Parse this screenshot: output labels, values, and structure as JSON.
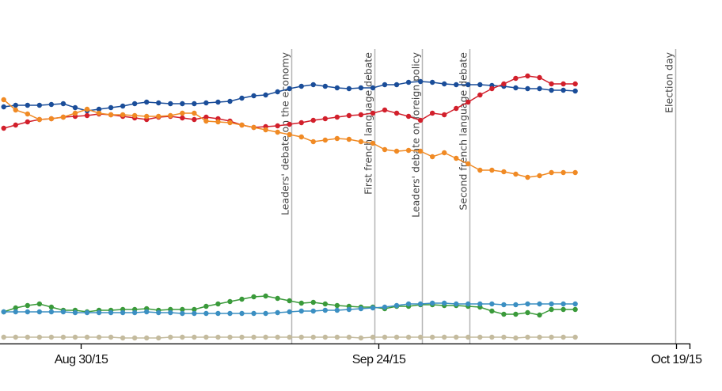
{
  "chart_data": {
    "type": "line",
    "title": "",
    "xlabel": "",
    "ylabel": "",
    "x_axis": {
      "type": "date",
      "range": [
        "2015-08-23",
        "2015-10-20"
      ],
      "ticks": [
        {
          "date": "2015-08-30",
          "label": "Aug 30/15"
        },
        {
          "date": "2015-09-24",
          "label": "Sep 24/15"
        },
        {
          "date": "2015-10-19",
          "label": "Oct 19/15"
        }
      ]
    },
    "y_axis": {
      "visible": false,
      "ylim": [
        0,
        38
      ]
    },
    "grid": false,
    "legend": "none",
    "events": [
      {
        "date": "2015-09-17",
        "label": "Leaders' debate on the economy"
      },
      {
        "date": "2015-09-24",
        "label": "First french language debate"
      },
      {
        "date": "2015-09-28",
        "label": "Leaders' debate on foreign policy"
      },
      {
        "date": "2015-10-02",
        "label": "Second french language debate"
      },
      {
        "date": "2015-10-19",
        "label": "Election day"
      }
    ],
    "x": [
      "2015-08-23",
      "2015-08-24",
      "2015-08-25",
      "2015-08-26",
      "2015-08-27",
      "2015-08-28",
      "2015-08-29",
      "2015-08-30",
      "2015-08-31",
      "2015-09-01",
      "2015-09-02",
      "2015-09-03",
      "2015-09-04",
      "2015-09-05",
      "2015-09-06",
      "2015-09-07",
      "2015-09-08",
      "2015-09-09",
      "2015-09-10",
      "2015-09-11",
      "2015-09-12",
      "2015-09-13",
      "2015-09-14",
      "2015-09-15",
      "2015-09-16",
      "2015-09-17",
      "2015-09-18",
      "2015-09-19",
      "2015-09-20",
      "2015-09-21",
      "2015-09-22",
      "2015-09-23",
      "2015-09-24",
      "2015-09-25",
      "2015-09-26",
      "2015-09-27",
      "2015-09-28",
      "2015-09-29",
      "2015-09-30",
      "2015-10-01",
      "2015-10-02",
      "2015-10-03",
      "2015-10-04",
      "2015-10-05",
      "2015-10-06",
      "2015-10-07",
      "2015-10-08",
      "2015-10-09",
      "2015-10-10"
    ],
    "series": [
      {
        "color": "#1a4d99",
        "values": [
          30.0,
          30.2,
          30.2,
          30.2,
          30.3,
          30.4,
          29.9,
          29.5,
          29.7,
          29.9,
          30.1,
          30.4,
          30.6,
          30.5,
          30.4,
          30.4,
          30.4,
          30.5,
          30.6,
          30.7,
          31.1,
          31.4,
          31.5,
          31.9,
          32.3,
          32.6,
          32.8,
          32.6,
          32.4,
          32.3,
          32.4,
          32.4,
          32.8,
          32.8,
          33.1,
          33.2,
          33.1,
          32.9,
          32.8,
          32.8,
          32.8,
          32.7,
          32.6,
          32.4,
          32.3,
          32.3,
          32.1,
          32.1,
          32.0
        ]
      },
      {
        "color": "#d21f2b",
        "values": [
          27.3,
          27.7,
          28.1,
          28.4,
          28.5,
          28.7,
          28.8,
          28.9,
          29.1,
          29.0,
          28.8,
          28.6,
          28.4,
          28.7,
          28.8,
          28.6,
          28.4,
          28.7,
          28.5,
          28.2,
          27.7,
          27.4,
          27.5,
          27.6,
          27.8,
          28.0,
          28.3,
          28.5,
          28.7,
          28.9,
          29.0,
          29.2,
          29.6,
          29.2,
          28.8,
          28.3,
          29.2,
          29.0,
          29.8,
          30.6,
          31.5,
          32.3,
          32.9,
          33.6,
          33.9,
          33.7,
          32.9,
          32.9,
          32.9
        ]
      },
      {
        "color": "#f08a24",
        "values": [
          30.9,
          29.6,
          29.1,
          28.4,
          28.5,
          28.7,
          29.2,
          29.7,
          29.2,
          29.0,
          29.0,
          28.9,
          28.8,
          28.8,
          28.9,
          29.2,
          29.2,
          28.2,
          28.1,
          28.0,
          27.7,
          27.4,
          27.1,
          26.8,
          26.5,
          26.2,
          25.6,
          25.8,
          26.0,
          25.9,
          25.6,
          25.4,
          24.6,
          24.4,
          24.5,
          24.4,
          23.7,
          24.2,
          23.5,
          22.8,
          22.0,
          22.0,
          21.8,
          21.5,
          21.1,
          21.3,
          21.7,
          21.7,
          21.7
        ]
      },
      {
        "color": "#3a9a3a",
        "values": [
          4.1,
          4.6,
          4.9,
          5.1,
          4.7,
          4.3,
          4.3,
          4.1,
          4.3,
          4.3,
          4.4,
          4.4,
          4.5,
          4.3,
          4.4,
          4.4,
          4.4,
          4.8,
          5.1,
          5.4,
          5.7,
          6.0,
          6.1,
          5.8,
          5.5,
          5.2,
          5.3,
          5.1,
          4.9,
          4.8,
          4.7,
          4.7,
          4.5,
          4.8,
          4.8,
          5.0,
          5.0,
          4.9,
          4.9,
          4.8,
          4.7,
          4.2,
          3.8,
          3.8,
          4.0,
          3.7,
          4.4,
          4.4,
          4.4
        ]
      },
      {
        "color": "#3b8fc2",
        "values": [
          4.1,
          4.1,
          4.1,
          4.1,
          4.1,
          4.1,
          4.0,
          4.0,
          4.0,
          4.0,
          4.0,
          4.0,
          4.1,
          4.0,
          4.0,
          3.9,
          3.9,
          3.9,
          3.9,
          3.9,
          3.9,
          3.9,
          3.9,
          4.0,
          4.1,
          4.2,
          4.2,
          4.3,
          4.3,
          4.4,
          4.5,
          4.6,
          4.7,
          4.9,
          5.1,
          5.1,
          5.2,
          5.2,
          5.1,
          5.1,
          5.1,
          5.1,
          5.0,
          5.0,
          5.1,
          5.1,
          5.1,
          5.1,
          5.1
        ]
      },
      {
        "color": "#c4bb9e",
        "values": [
          0.9,
          0.9,
          0.9,
          0.9,
          0.9,
          0.9,
          0.9,
          0.9,
          0.9,
          0.9,
          0.8,
          0.8,
          0.8,
          0.8,
          0.9,
          0.9,
          0.9,
          0.9,
          0.9,
          0.9,
          0.9,
          0.9,
          0.9,
          0.9,
          0.9,
          0.9,
          0.9,
          0.9,
          0.9,
          0.9,
          0.8,
          0.9,
          0.9,
          0.9,
          0.9,
          0.9,
          0.9,
          0.9,
          0.9,
          0.9,
          0.9,
          0.9,
          0.9,
          0.8,
          0.9,
          0.9,
          0.9,
          0.9,
          0.9
        ]
      }
    ]
  }
}
